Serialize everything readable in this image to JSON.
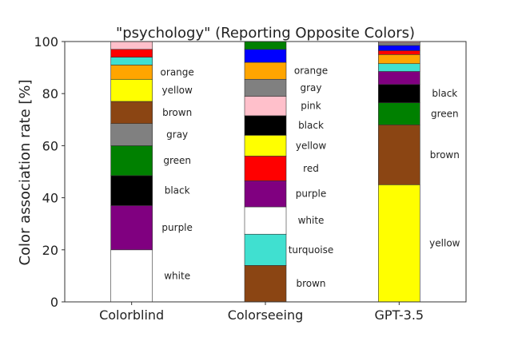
{
  "chart_data": {
    "type": "bar",
    "stacked": true,
    "title": "\"psychology\" (Reporting Opposite Colors)",
    "xlabel": "",
    "ylabel": "Color association rate [%]",
    "ylim": [
      0,
      100
    ],
    "yticks": [
      0,
      20,
      40,
      60,
      80,
      100
    ],
    "grid": false,
    "categories": [
      "Colorblind",
      "Colorseeing",
      "GPT-3.5"
    ],
    "bars": [
      {
        "category": "Colorblind",
        "segments": [
          {
            "color_name": "white",
            "value": 20,
            "color": "#ffffff",
            "label": "white"
          },
          {
            "color_name": "purple",
            "value": 17,
            "color": "#800080",
            "label": "purple"
          },
          {
            "color_name": "black",
            "value": 11.5,
            "color": "#000000",
            "label": "black"
          },
          {
            "color_name": "green",
            "value": 11.5,
            "color": "#008000",
            "label": "green"
          },
          {
            "color_name": "gray",
            "value": 8.5,
            "color": "#808080",
            "label": "gray"
          },
          {
            "color_name": "brown",
            "value": 8.5,
            "color": "#8b4513",
            "label": "brown"
          },
          {
            "color_name": "yellow",
            "value": 8.5,
            "color": "#ffff00",
            "label": "yellow"
          },
          {
            "color_name": "orange",
            "value": 5.5,
            "color": "#ffa500",
            "label": "orange"
          },
          {
            "color_name": "turquoise",
            "value": 3,
            "color": "#40e0d0",
            "label": ""
          },
          {
            "color_name": "red",
            "value": 3,
            "color": "#ff0000",
            "label": ""
          },
          {
            "color_name": "pink",
            "value": 3,
            "color": "#ffc0cb",
            "label": ""
          }
        ]
      },
      {
        "category": "Colorseeing",
        "segments": [
          {
            "color_name": "brown",
            "value": 14,
            "color": "#8b4513",
            "label": "brown"
          },
          {
            "color_name": "turquoise",
            "value": 12,
            "color": "#40e0d0",
            "label": "turquoise"
          },
          {
            "color_name": "white",
            "value": 10.5,
            "color": "#ffffff",
            "label": "white"
          },
          {
            "color_name": "purple",
            "value": 10,
            "color": "#800080",
            "label": "purple"
          },
          {
            "color_name": "red",
            "value": 9.5,
            "color": "#ff0000",
            "label": "red"
          },
          {
            "color_name": "yellow",
            "value": 8,
            "color": "#ffff00",
            "label": "yellow"
          },
          {
            "color_name": "black",
            "value": 7.5,
            "color": "#000000",
            "label": "black"
          },
          {
            "color_name": "pink",
            "value": 7.5,
            "color": "#ffc0cb",
            "label": "pink"
          },
          {
            "color_name": "gray",
            "value": 6.5,
            "color": "#808080",
            "label": "gray"
          },
          {
            "color_name": "orange",
            "value": 6.5,
            "color": "#ffa500",
            "label": "orange"
          },
          {
            "color_name": "blue",
            "value": 5,
            "color": "#0000ff",
            "label": ""
          },
          {
            "color_name": "green",
            "value": 3,
            "color": "#008000",
            "label": ""
          }
        ]
      },
      {
        "category": "GPT-3.5",
        "segments": [
          {
            "color_name": "yellow",
            "value": 45,
            "color": "#ffff00",
            "label": "yellow"
          },
          {
            "color_name": "brown",
            "value": 23,
            "color": "#8b4513",
            "label": "brown"
          },
          {
            "color_name": "green",
            "value": 8.5,
            "color": "#008000",
            "label": "green"
          },
          {
            "color_name": "black",
            "value": 7,
            "color": "#000000",
            "label": "black"
          },
          {
            "color_name": "purple",
            "value": 5,
            "color": "#800080",
            "label": ""
          },
          {
            "color_name": "turquoise",
            "value": 3,
            "color": "#40e0d0",
            "label": ""
          },
          {
            "color_name": "orange",
            "value": 3.5,
            "color": "#ffa500",
            "label": ""
          },
          {
            "color_name": "red",
            "value": 1.5,
            "color": "#ff0000",
            "label": ""
          },
          {
            "color_name": "blue",
            "value": 2,
            "color": "#0000ff",
            "label": ""
          },
          {
            "color_name": "gray",
            "value": 1,
            "color": "#808080",
            "label": ""
          },
          {
            "color_name": "pink",
            "value": 0.5,
            "color": "#ffc0cb",
            "label": ""
          }
        ]
      }
    ]
  }
}
